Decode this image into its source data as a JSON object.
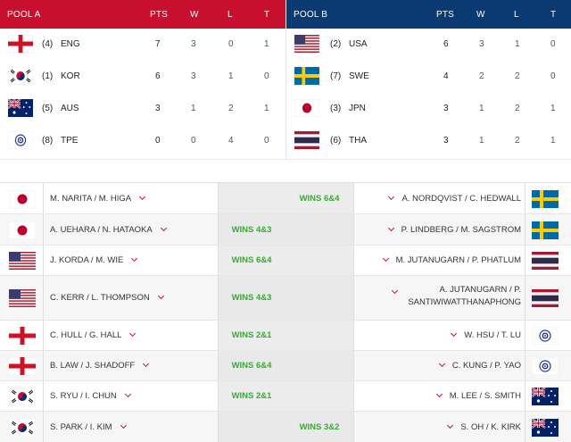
{
  "pool_a": {
    "title": "POOL A",
    "headers": {
      "pts": "PTS",
      "w": "W",
      "l": "L",
      "t": "T"
    },
    "rows": [
      {
        "flag": "england-flag",
        "rank": "(4)",
        "team": "ENG",
        "pts": "7",
        "w": "3",
        "l": "0",
        "t": "1"
      },
      {
        "flag": "korea-flag",
        "rank": "(1)",
        "team": "KOR",
        "pts": "6",
        "w": "3",
        "l": "1",
        "t": "0"
      },
      {
        "flag": "australia-flag",
        "rank": "(5)",
        "team": "AUS",
        "pts": "3",
        "w": "1",
        "l": "2",
        "t": "1"
      },
      {
        "flag": "chinese-taipei-flag",
        "rank": "(8)",
        "team": "TPE",
        "pts": "0",
        "w": "0",
        "l": "4",
        "t": "0"
      }
    ]
  },
  "pool_b": {
    "title": "POOL B",
    "headers": {
      "pts": "PTS",
      "w": "W",
      "l": "L",
      "t": "T"
    },
    "rows": [
      {
        "flag": "usa-flag",
        "rank": "(2)",
        "team": "USA",
        "pts": "6",
        "w": "3",
        "l": "1",
        "t": "0"
      },
      {
        "flag": "sweden-flag",
        "rank": "(7)",
        "team": "SWE",
        "pts": "4",
        "w": "2",
        "l": "2",
        "t": "0"
      },
      {
        "flag": "japan-flag",
        "rank": "(3)",
        "team": "JPN",
        "pts": "3",
        "w": "1",
        "l": "2",
        "t": "1"
      },
      {
        "flag": "thailand-flag",
        "rank": "(6)",
        "team": "THA",
        "pts": "3",
        "w": "1",
        "l": "2",
        "t": "1"
      }
    ]
  },
  "matches": [
    {
      "left_flag": "japan-flag",
      "left_names": "M. NARITA / M. HIGA",
      "result_left": "",
      "result_right": "WINS 6&4",
      "right_names": "A. NORDQVIST / C. HEDWALL",
      "right_flag": "sweden-flag"
    },
    {
      "left_flag": "japan-flag",
      "left_names": "A. UEHARA / N. HATAOKA",
      "result_left": "WINS 4&3",
      "result_right": "",
      "right_names": "P. LINDBERG / M. SAGSTROM",
      "right_flag": "sweden-flag"
    },
    {
      "left_flag": "usa-flag",
      "left_names": "J. KORDA / M. WIE",
      "result_left": "WINS 6&4",
      "result_right": "",
      "right_names": "M. JUTANUGARN / P. PHATLUM",
      "right_flag": "thailand-flag"
    },
    {
      "left_flag": "usa-flag",
      "left_names": "C. KERR / L. THOMPSON",
      "result_left": "WINS 4&3",
      "result_right": "",
      "right_names": "A. JUTANUGARN / P. SANTIWIWATTHANAPHONG",
      "right_flag": "thailand-flag"
    },
    {
      "left_flag": "england-flag",
      "left_names": "C. HULL / G. HALL",
      "result_left": "WINS 2&1",
      "result_right": "",
      "right_names": "W. HSU / T. LU",
      "right_flag": "chinese-taipei-flag"
    },
    {
      "left_flag": "england-flag",
      "left_names": "B. LAW / J. SHADOFF",
      "result_left": "WINS 6&4",
      "result_right": "",
      "right_names": "C. KUNG / P. YAO",
      "right_flag": "chinese-taipei-flag"
    },
    {
      "left_flag": "korea-flag",
      "left_names": "S. RYU / I. CHUN",
      "result_left": "WINS 2&1",
      "result_right": "",
      "right_names": "M. LEE / S. SMITH",
      "right_flag": "australia-flag"
    },
    {
      "left_flag": "korea-flag",
      "left_names": "S. PARK / I. KIM",
      "result_left": "",
      "result_right": "WINS 3&2",
      "right_names": "S. OH / K. KIRK",
      "right_flag": "australia-flag"
    }
  ]
}
